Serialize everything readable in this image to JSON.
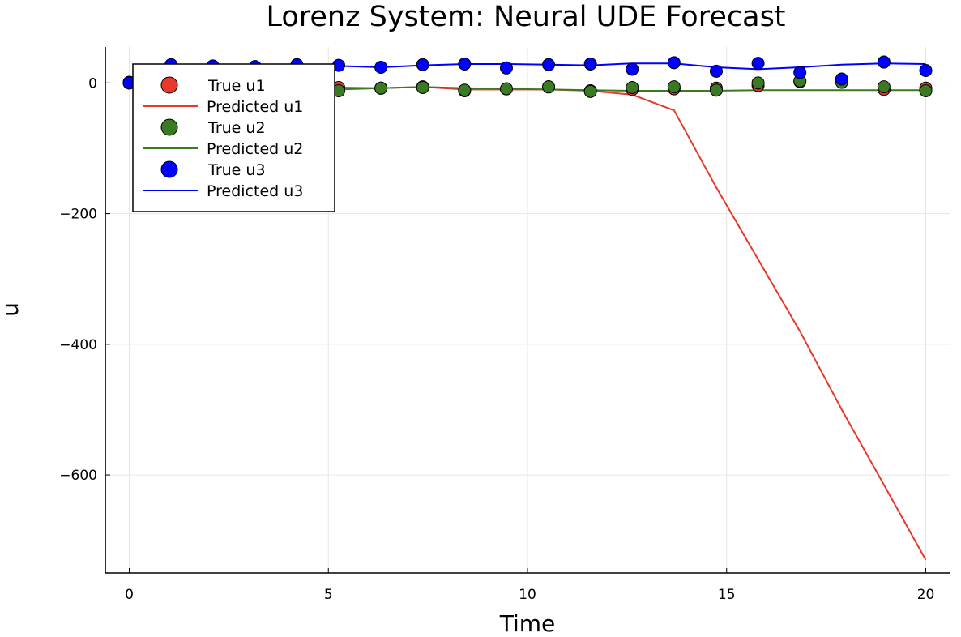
{
  "chart_data": {
    "type": "line",
    "title": "Lorenz System: Neural UDE Forecast",
    "xlabel": "Time",
    "ylabel": "u",
    "xlim": [
      -0.6,
      20.6
    ],
    "ylim": [
      -750,
      55
    ],
    "xticks": [
      0,
      5,
      10,
      15,
      20
    ],
    "xtick_labels": [
      "0",
      "5",
      "10",
      "15",
      "20"
    ],
    "yticks": [
      0,
      -200,
      -400,
      -600
    ],
    "ytick_labels": [
      "0",
      "−200",
      "−400",
      "−600"
    ],
    "grid": true,
    "legend_position": "top-left",
    "x": [
      0.0,
      1.05,
      2.1,
      3.16,
      4.21,
      5.26,
      6.32,
      7.37,
      8.42,
      9.47,
      10.53,
      11.58,
      12.63,
      13.68,
      14.74,
      15.79,
      16.84,
      17.89,
      18.95,
      20.0
    ],
    "series": [
      {
        "name": "True u1",
        "kind": "scatter",
        "color": "#e8372b",
        "values": [
          1,
          -4,
          -6,
          -8,
          -5,
          -7,
          -8,
          -6,
          -12,
          -9,
          -6,
          -12,
          -10,
          -9,
          -8,
          -4,
          2,
          4,
          -10,
          -8
        ]
      },
      {
        "name": "Predicted u1",
        "kind": "line",
        "color": "#e8372b",
        "values": [
          1,
          -4,
          -6,
          -8,
          -5,
          -7,
          -8,
          -6,
          -10,
          -10,
          -10,
          -12,
          -18,
          -42,
          -160,
          -270,
          -380,
          -500,
          -615,
          -730
        ]
      },
      {
        "name": "True u2",
        "kind": "scatter",
        "color": "#3a7a22",
        "values": [
          0,
          -5,
          -7,
          -8,
          -6,
          -12,
          -8,
          -7,
          -11,
          -9,
          -6,
          -13,
          -7,
          -6,
          -11,
          0,
          3,
          1,
          -6,
          -12
        ]
      },
      {
        "name": "Predicted u2",
        "kind": "line",
        "color": "#3a7a22",
        "values": [
          0,
          -5,
          -7,
          -8,
          -6,
          -10,
          -8,
          -6,
          -8,
          -9,
          -10,
          -11,
          -12,
          -12,
          -12,
          -11,
          -11,
          -11,
          -11,
          -11
        ]
      },
      {
        "name": "True u3",
        "kind": "scatter",
        "color": "#0000ff",
        "values": [
          0,
          28,
          26,
          25,
          28,
          27,
          24,
          28,
          29,
          23,
          28,
          29,
          21,
          31,
          18,
          30,
          16,
          6,
          32,
          19
        ]
      },
      {
        "name": "Predicted u3",
        "kind": "line",
        "color": "#0000ff",
        "values": [
          0,
          27,
          27,
          27,
          27,
          26,
          24,
          27,
          29,
          29,
          28,
          27,
          30,
          30,
          24,
          21,
          24,
          28,
          30,
          29
        ]
      }
    ]
  }
}
